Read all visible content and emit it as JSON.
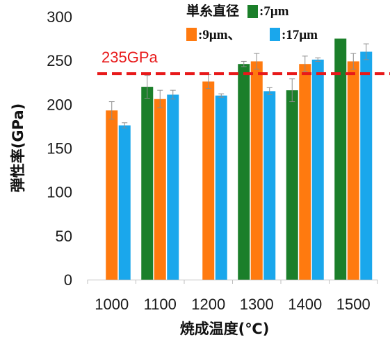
{
  "chart_data": {
    "type": "bar",
    "xlabel": "焼成温度(℃)",
    "ylabel": "弾性率(GPa)",
    "ylim": [
      0,
      300
    ],
    "yticks": [
      0,
      50,
      100,
      150,
      200,
      250,
      300
    ],
    "categories": [
      "1000",
      "1100",
      "1200",
      "1300",
      "1400",
      "1500"
    ],
    "legend_title": "単糸直径",
    "legend_separator": "、",
    "series": [
      {
        "name": ":7μm",
        "color": "#1b7f2a",
        "values": [
          null,
          220,
          null,
          246,
          216,
          275
        ],
        "errors": [
          null,
          13,
          null,
          3,
          13,
          0
        ]
      },
      {
        "name": ":9μm",
        "color": "#ff7a0f",
        "values": [
          193,
          206,
          226,
          249,
          246,
          249
        ],
        "errors": [
          10,
          10,
          8,
          9,
          9,
          9
        ]
      },
      {
        "name": ":17μm",
        "color": "#1aa7ec",
        "values": [
          176,
          211,
          210,
          215,
          251,
          260
        ],
        "errors": [
          3,
          5,
          2,
          4,
          2,
          9
        ]
      }
    ],
    "reference_line": {
      "value": 235,
      "label": "235GPa",
      "color": "#e8191a"
    },
    "grid": false,
    "legend_position": "top-right"
  }
}
